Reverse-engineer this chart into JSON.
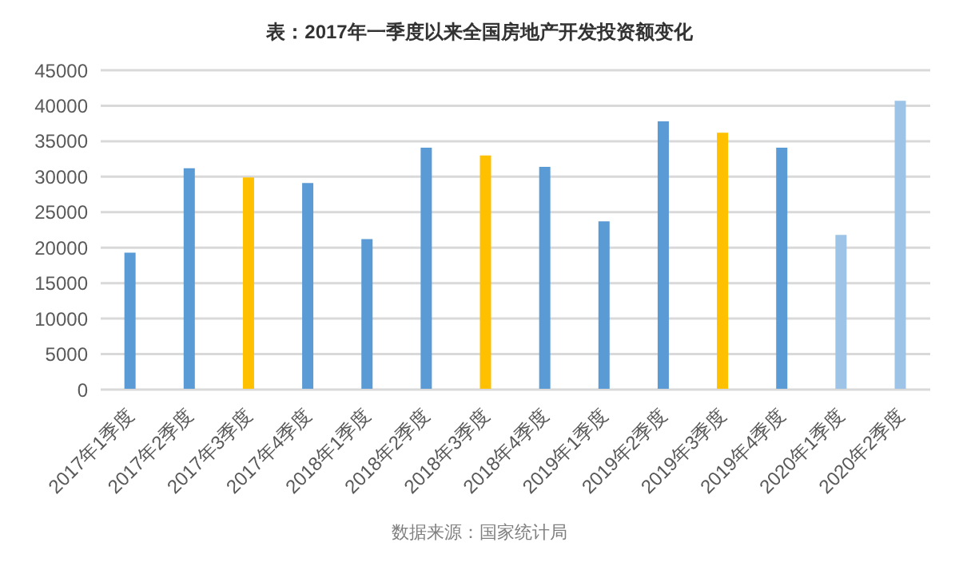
{
  "chart_data": {
    "type": "bar",
    "title": "表：2017年一季度以来全国房地产开发投资额变化",
    "categories": [
      "2017年1季度",
      "2017年2季度",
      "2017年3季度",
      "2017年4季度",
      "2018年1季度",
      "2018年2季度",
      "2018年3季度",
      "2018年4季度",
      "2019年1季度",
      "2019年2季度",
      "2019年3季度",
      "2019年4季度",
      "2020年1季度",
      "2020年2季度"
    ],
    "values": [
      19300,
      31200,
      29900,
      29100,
      21200,
      34100,
      33000,
      31400,
      23700,
      37800,
      36200,
      34100,
      21800,
      40700
    ],
    "colors": [
      "#5b9bd5",
      "#5b9bd5",
      "#ffc000",
      "#5b9bd5",
      "#5b9bd5",
      "#5b9bd5",
      "#ffc000",
      "#5b9bd5",
      "#5b9bd5",
      "#5b9bd5",
      "#ffc000",
      "#5b9bd5",
      "#9dc3e6",
      "#9dc3e6"
    ],
    "ylim": [
      0,
      45000
    ],
    "yticks": [
      0,
      5000,
      10000,
      15000,
      20000,
      25000,
      30000,
      35000,
      40000,
      45000
    ],
    "grid": "y",
    "annotations": [
      "数据来源：国家统计局"
    ]
  }
}
